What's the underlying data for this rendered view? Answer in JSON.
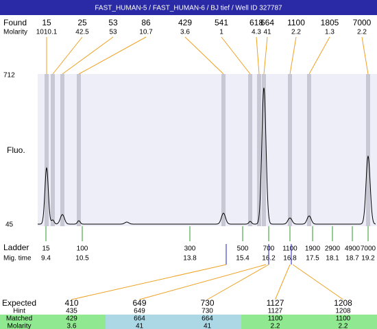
{
  "header": {
    "title": "FAST_HUMAN-5 / FAST_HUMAN-6 / BJ tief / Well ID 327787"
  },
  "found": {
    "label": "Found",
    "molarity_label": "Molarity",
    "sizes": [
      15,
      25,
      53,
      86,
      429,
      541,
      618,
      664,
      1100,
      1805,
      7000
    ],
    "molarity": [
      1010.1,
      42.5,
      53,
      10.7,
      3.6,
      1,
      4.3,
      41,
      2.2,
      1.3,
      2.2
    ]
  },
  "axis": {
    "top": "712",
    "bottom": "45",
    "label": "Fluo."
  },
  "ladder": {
    "label": "Ladder",
    "time_label": "Mig. time",
    "sizes": [
      15,
      100,
      300,
      500,
      700,
      1100,
      1900,
      2900,
      4900,
      7000
    ],
    "times": [
      9.4,
      10.5,
      13.8,
      15.4,
      16.2,
      16.8,
      17.5,
      18.1,
      18.7,
      19.2
    ]
  },
  "table": {
    "headers": [
      "Expected",
      "Hint",
      "Matched",
      "Molarity"
    ],
    "columns": [
      {
        "expected": 410,
        "hint": 435,
        "matched": 429,
        "molarity": 3.6
      },
      {
        "expected": 649,
        "hint": 649,
        "matched": 664,
        "molarity": 41
      },
      {
        "expected": 730,
        "hint": 730,
        "matched": 664,
        "molarity": 41
      },
      {
        "expected": 1127,
        "hint": 1127,
        "matched": 1100,
        "molarity": 2.2
      },
      {
        "expected": 1208,
        "hint": 1208,
        "matched": 1100,
        "molarity": 2.2
      }
    ]
  }
}
